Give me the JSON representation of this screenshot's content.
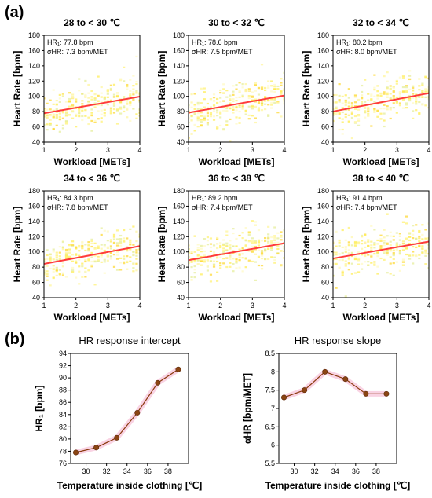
{
  "figure": {
    "panel_a_label": "(a)",
    "panel_b_label": "(b)"
  },
  "chart_data": [
    {
      "type": "scatter",
      "title": "28 to < 30 ℃",
      "xlabel": "Workload [METs]",
      "ylabel": "Heart Rate [bpm]",
      "xlim": [
        1,
        4
      ],
      "ylim": [
        40,
        180
      ],
      "xticks": [
        1,
        2,
        3,
        4
      ],
      "yticks": [
        40,
        60,
        80,
        100,
        120,
        140,
        160,
        180
      ],
      "annotation_hr": "HR₁: 77.8 bpm",
      "annotation_alpha": "σHR: 7.3 bpm/MET",
      "intercept": 77.8,
      "slope": 7.3,
      "line_color": "#ff3b3b"
    },
    {
      "type": "scatter",
      "title": "30 to < 32 ℃",
      "xlabel": "Workload [METs]",
      "ylabel": "Heart Rate [bpm]",
      "xlim": [
        1,
        4
      ],
      "ylim": [
        40,
        180
      ],
      "xticks": [
        1,
        2,
        3,
        4
      ],
      "yticks": [
        40,
        60,
        80,
        100,
        120,
        140,
        160,
        180
      ],
      "annotation_hr": "HR₁: 78.6 bpm",
      "annotation_alpha": "σHR: 7.5 bpm/MET",
      "intercept": 78.6,
      "slope": 7.5,
      "line_color": "#ff3b3b"
    },
    {
      "type": "scatter",
      "title": "32 to < 34 ℃",
      "xlabel": "Workload [METs]",
      "ylabel": "Heart Rate [bpm]",
      "xlim": [
        1,
        4
      ],
      "ylim": [
        40,
        180
      ],
      "xticks": [
        1,
        2,
        3,
        4
      ],
      "yticks": [
        40,
        60,
        80,
        100,
        120,
        140,
        160,
        180
      ],
      "annotation_hr": "HR₁: 80.2 bpm",
      "annotation_alpha": "σHR: 8.0 bpm/MET",
      "intercept": 80.2,
      "slope": 8.0,
      "line_color": "#ff3b3b"
    },
    {
      "type": "scatter",
      "title": "34 to < 36 ℃",
      "xlabel": "Workload [METs]",
      "ylabel": "Heart Rate [bpm]",
      "xlim": [
        1,
        4
      ],
      "ylim": [
        40,
        180
      ],
      "xticks": [
        1,
        2,
        3,
        4
      ],
      "yticks": [
        40,
        60,
        80,
        100,
        120,
        140,
        160,
        180
      ],
      "annotation_hr": "HR₁: 84.3 bpm",
      "annotation_alpha": "σHR: 7.8 bpm/MET",
      "intercept": 84.3,
      "slope": 7.8,
      "line_color": "#ff3b3b"
    },
    {
      "type": "scatter",
      "title": "36 to < 38 ℃",
      "xlabel": "Workload [METs]",
      "ylabel": "Heart Rate [bpm]",
      "xlim": [
        1,
        4
      ],
      "ylim": [
        40,
        180
      ],
      "xticks": [
        1,
        2,
        3,
        4
      ],
      "yticks": [
        40,
        60,
        80,
        100,
        120,
        140,
        160,
        180
      ],
      "annotation_hr": "HR₁: 89.2 bpm",
      "annotation_alpha": "σHR: 7.4 bpm/MET",
      "intercept": 89.2,
      "slope": 7.4,
      "line_color": "#ff3b3b"
    },
    {
      "type": "scatter",
      "title": "38 to < 40 ℃",
      "xlabel": "Workload [METs]",
      "ylabel": "Heart Rate [bpm]",
      "xlim": [
        1,
        4
      ],
      "ylim": [
        40,
        180
      ],
      "xticks": [
        1,
        2,
        3,
        4
      ],
      "yticks": [
        40,
        60,
        80,
        100,
        120,
        140,
        160,
        180
      ],
      "annotation_hr": "HR₁: 91.4 bpm",
      "annotation_alpha": "σHR: 7.4 bpm/MET",
      "intercept": 91.4,
      "slope": 7.4,
      "line_color": "#ff3b3b"
    },
    {
      "type": "line",
      "title": "HR response intercept",
      "xlabel": "Temperature inside clothing [℃]",
      "ylabel": "HR₁ [bpm]",
      "x": [
        29,
        31,
        33,
        35,
        37,
        39
      ],
      "values": [
        77.8,
        78.6,
        80.2,
        84.3,
        89.2,
        91.4
      ],
      "xlim": [
        28.5,
        40
      ],
      "ylim": [
        76,
        94
      ],
      "xticks": [
        30,
        32,
        34,
        36,
        38
      ],
      "yticks": [
        76,
        78,
        80,
        82,
        84,
        86,
        88,
        90,
        92,
        94
      ],
      "line_color": "#8b3a0e",
      "marker_color": "#8b4513"
    },
    {
      "type": "line",
      "title": "HR response slope",
      "xlabel": "Temperature inside clothing [℃]",
      "ylabel": "αHR [bpm/MET]",
      "x": [
        29,
        31,
        33,
        35,
        37,
        39
      ],
      "values": [
        7.3,
        7.5,
        8.0,
        7.8,
        7.4,
        7.4
      ],
      "xlim": [
        28.5,
        40
      ],
      "ylim": [
        5.5,
        8.5
      ],
      "xticks": [
        30,
        32,
        34,
        36,
        38
      ],
      "yticks": [
        5.5,
        6.0,
        6.5,
        7.0,
        7.5,
        8.0,
        8.5
      ],
      "line_color": "#8b3a0e",
      "marker_color": "#8b4513"
    }
  ]
}
